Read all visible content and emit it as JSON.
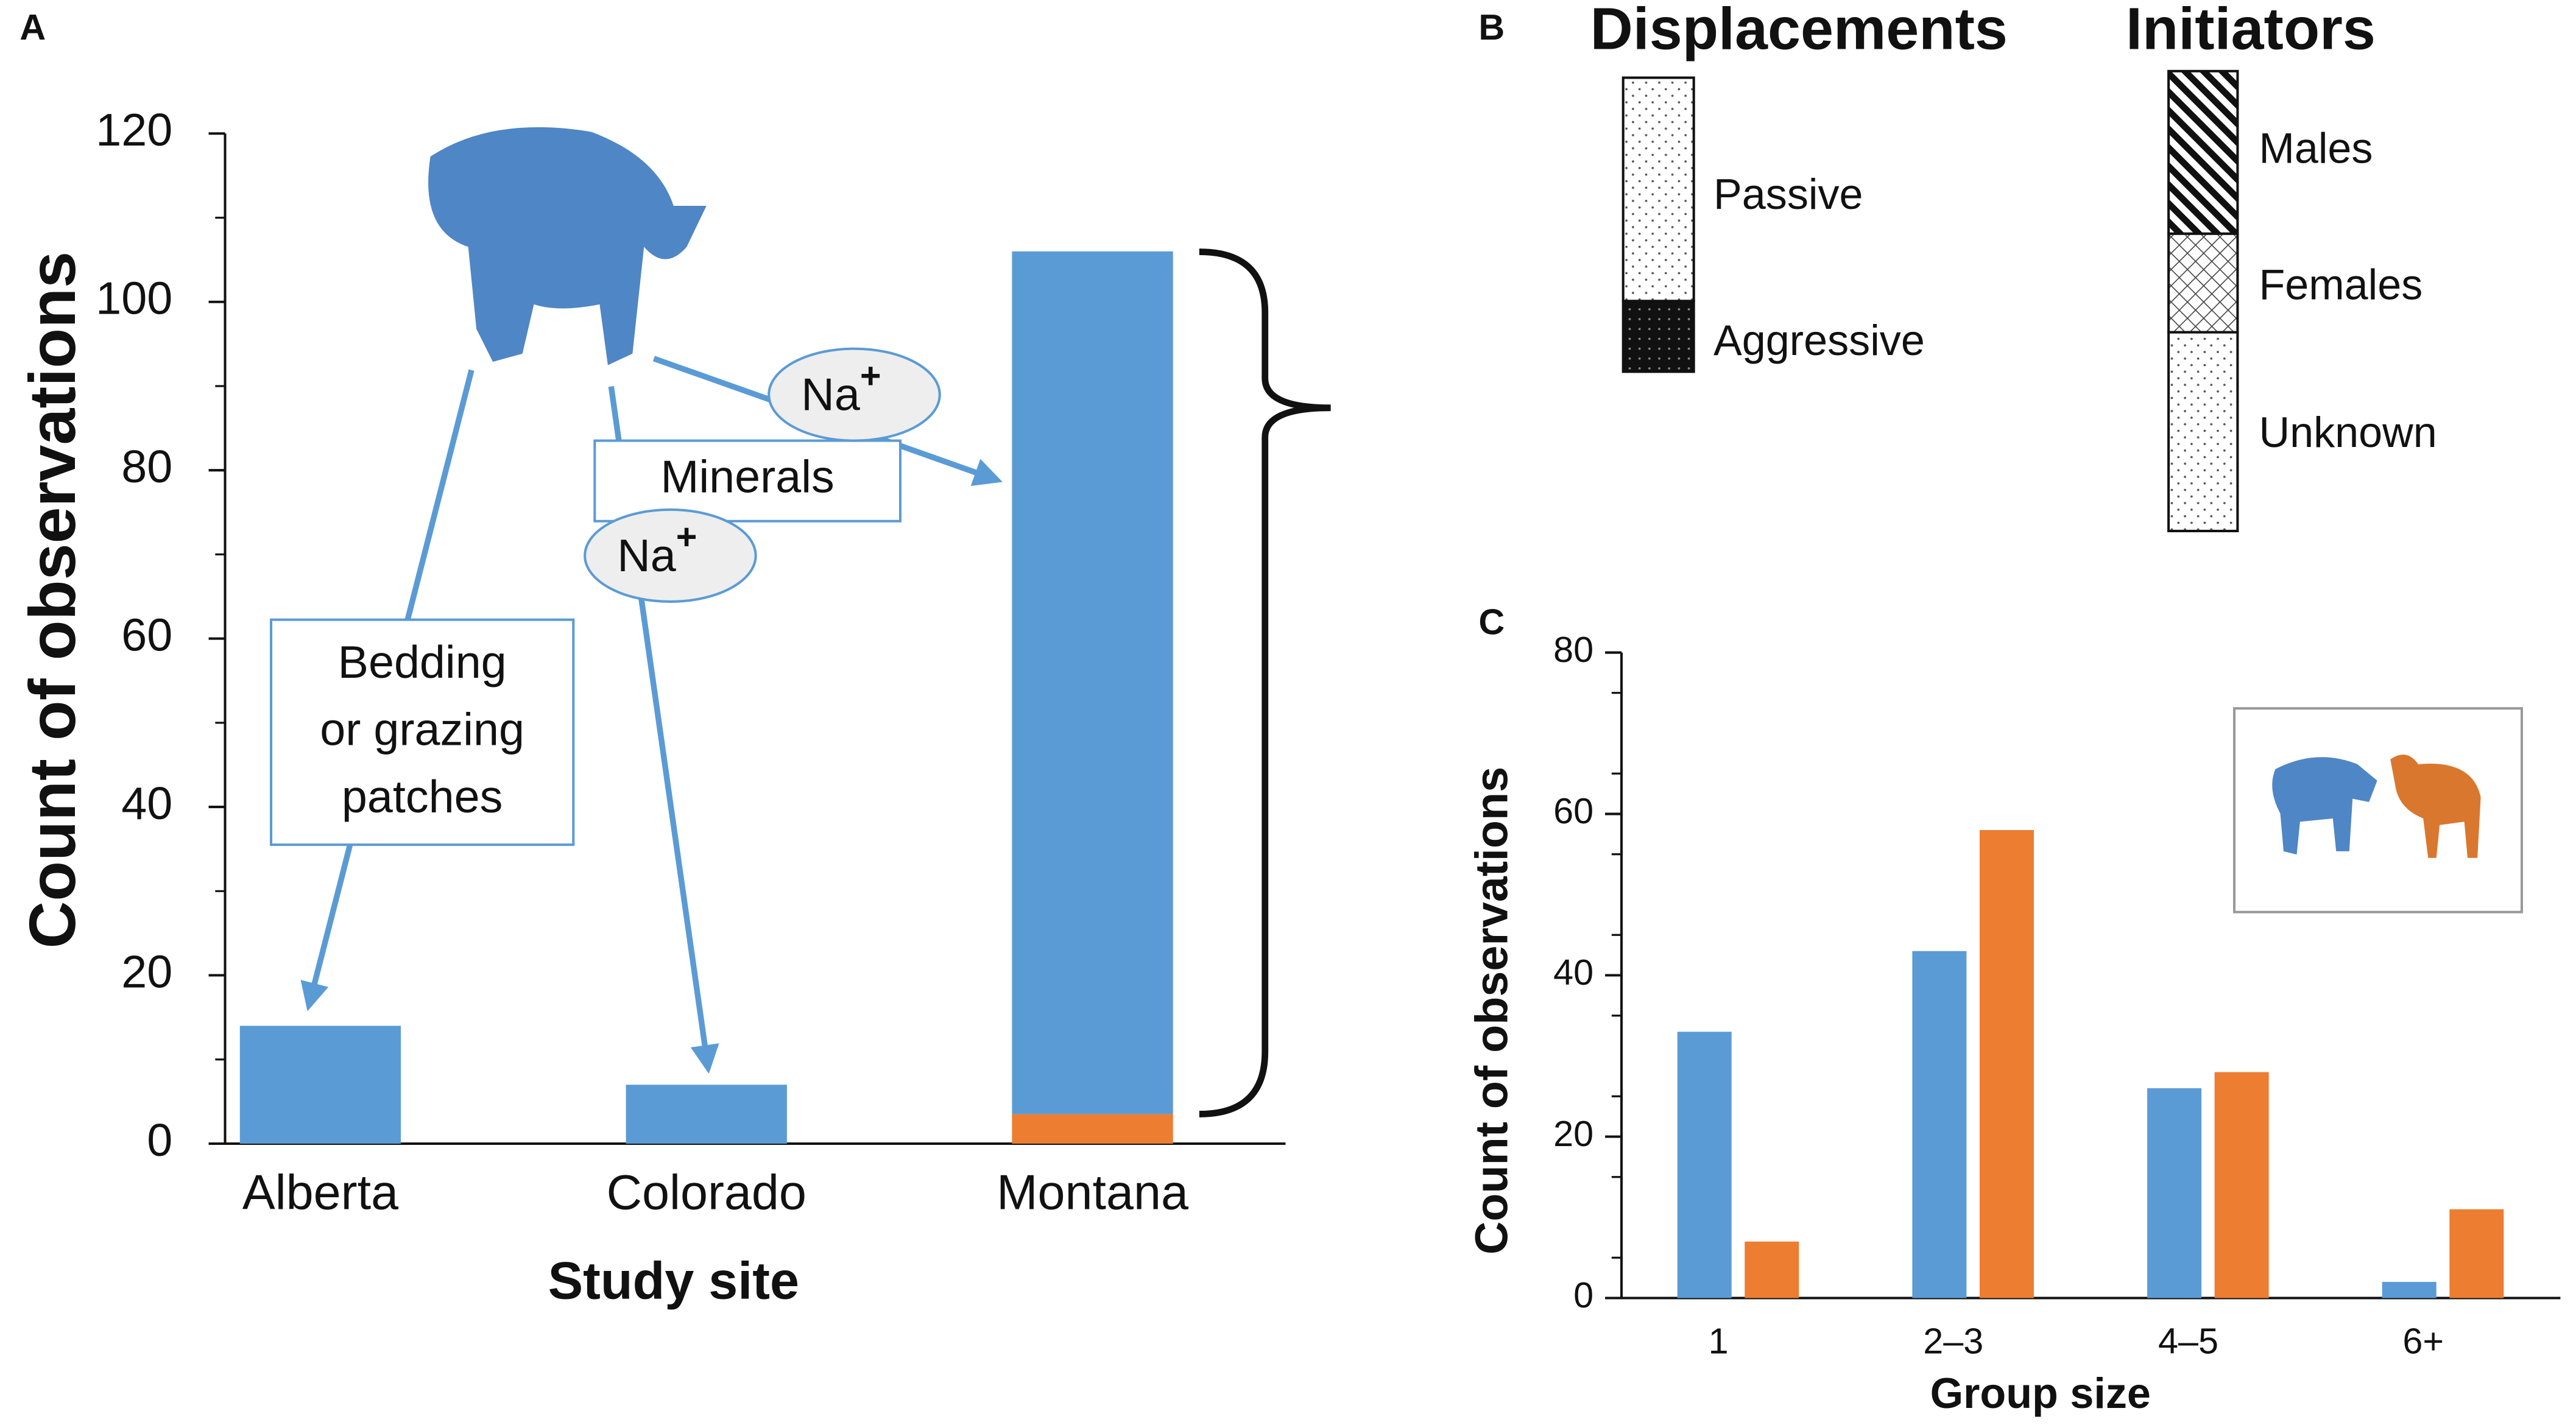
{
  "chart_data": [
    {
      "type": "bar",
      "panel": "A",
      "stacked": true,
      "categories": [
        "Alberta",
        "Colorado",
        "Montana"
      ],
      "series": [
        {
          "color": "#ed7d31",
          "values": [
            null,
            null,
            3.5
          ]
        },
        {
          "color": "#5b9bd5",
          "values": [
            14,
            7,
            102.5
          ]
        }
      ],
      "ylim": [
        0,
        120
      ],
      "yticks": [
        0,
        20,
        40,
        60,
        80,
        100,
        120
      ],
      "yminorticks": [
        10,
        30,
        50,
        70,
        90,
        110
      ],
      "xlabel": "Study site",
      "ylabel": "Count of observations",
      "annotations": {
        "bedding": [
          "Bedding",
          "or grazing",
          "patches"
        ],
        "minerals": "Minerals",
        "ions": [
          {
            "text": "Na",
            "sup": "+"
          },
          {
            "text": "Na",
            "sup": "+"
          }
        ]
      }
    },
    {
      "type": "bar",
      "panel": "C",
      "stacked": false,
      "categories": [
        "1",
        "2–3",
        "4–5",
        "6+"
      ],
      "series": [
        {
          "color": "#5b9bd5",
          "values": [
            33,
            43,
            26,
            2
          ]
        },
        {
          "color": "#ed7d31",
          "values": [
            7,
            58,
            28,
            11
          ]
        }
      ],
      "ylim": [
        0,
        80
      ],
      "yticks": [
        0,
        20,
        40,
        60,
        80
      ],
      "yminorticks": [
        5,
        15,
        25,
        35,
        45,
        55,
        65,
        75
      ],
      "xlabel": "Group size",
      "ylabel": "Count of observations"
    }
  ],
  "legend_b": {
    "panel": "B",
    "groups": [
      {
        "title": "Displacements",
        "items": [
          "Passive",
          "Aggressive"
        ]
      },
      {
        "title": "Initiators",
        "items": [
          "Males",
          "Females",
          "Unknown"
        ]
      }
    ]
  }
}
